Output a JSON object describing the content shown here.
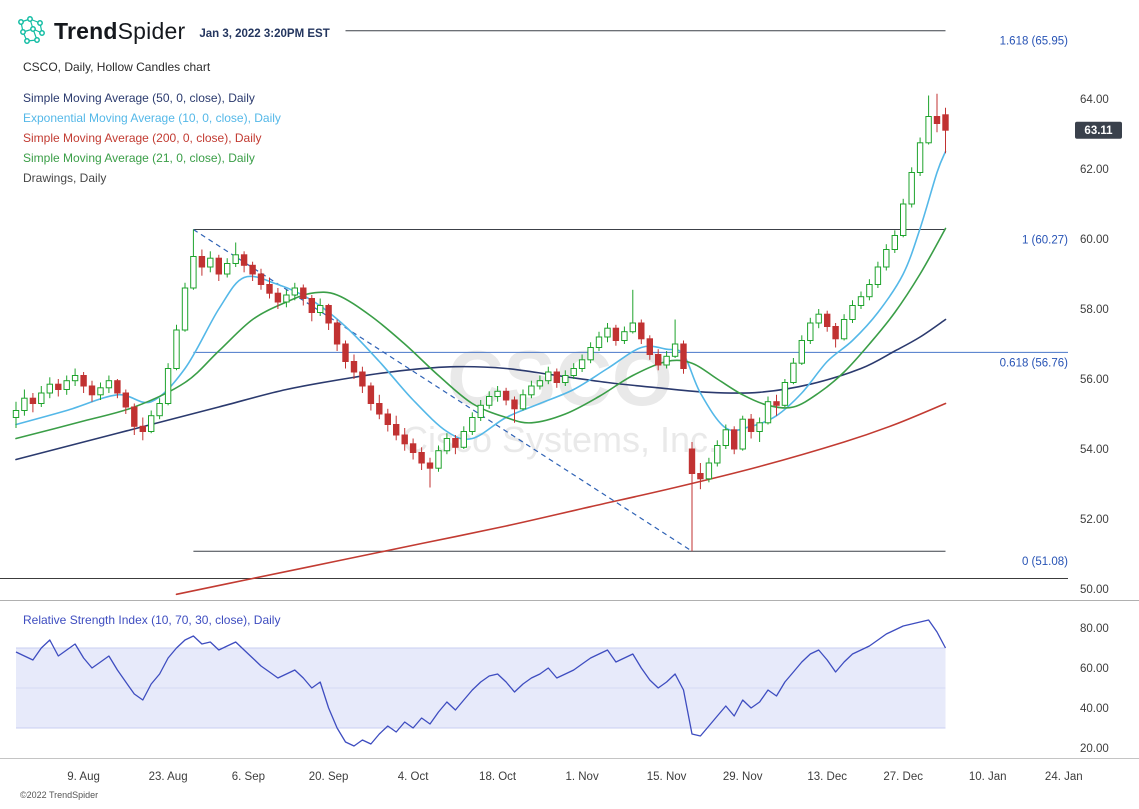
{
  "header": {
    "brand_bold": "Trend",
    "brand_regular": "Spider",
    "timestamp": "Jan 3, 2022 3:20PM EST"
  },
  "legend": {
    "chart_title": "CSCO, Daily, Hollow Candles chart",
    "items": [
      {
        "name": "sma-50",
        "label": "Simple Moving Average (50, 0, close), Daily",
        "color": "#2b3a6e"
      },
      {
        "name": "ema-10",
        "label": "Exponential Moving Average (10, 0, close), Daily",
        "color": "#54b8e8"
      },
      {
        "name": "sma-200",
        "label": "Simple Moving Average (200, 0, close), Daily",
        "color": "#c23b32"
      },
      {
        "name": "sma-21",
        "label": "Simple Moving Average (21, 0, close), Daily",
        "color": "#3a9e47"
      }
    ],
    "drawings_label": "Drawings, Daily",
    "drawings_color": "#474747",
    "rsi_label": "Relative Strength Index (10, 70, 30, close), Daily",
    "rsi_color": "#3e4dc0"
  },
  "watermark": {
    "line1": "CSCO",
    "line2": "Cisco Systems, Inc."
  },
  "price_badge": {
    "value": "63.11",
    "bg": "#3a414c"
  },
  "footer": {
    "copyright": "©2022 TrendSpider"
  },
  "chart_data": {
    "type": "candlestick",
    "symbol": "CSCO",
    "timeframe": "Daily",
    "title": "CSCO, Daily, Hollow Candles chart",
    "price_axis": {
      "ticks": [
        "64.00",
        "62.00",
        "60.00",
        "58.00",
        "56.00",
        "54.00",
        "52.00",
        "50.00"
      ],
      "tick_values": [
        64,
        62,
        60,
        58,
        56,
        54,
        52,
        50
      ],
      "min": 49.3,
      "max": 66.8
    },
    "x_labels": [
      {
        "label": "9. Aug",
        "i": 8
      },
      {
        "label": "23. Aug",
        "i": 18
      },
      {
        "label": "6. Sep",
        "i": 27.5
      },
      {
        "label": "20. Sep",
        "i": 37
      },
      {
        "label": "4. Oct",
        "i": 47
      },
      {
        "label": "18. Oct",
        "i": 57
      },
      {
        "label": "1. Nov",
        "i": 67
      },
      {
        "label": "15. Nov",
        "i": 77
      },
      {
        "label": "29. Nov",
        "i": 86
      },
      {
        "label": "13. Dec",
        "i": 96
      },
      {
        "label": "27. Dec",
        "i": 105
      },
      {
        "label": "10. Jan",
        "i": 115
      },
      {
        "label": "24. Jan",
        "i": 124
      }
    ],
    "candles": [
      [
        54.9,
        55.35,
        54.6,
        55.1
      ],
      [
        55.1,
        55.7,
        54.95,
        55.45
      ],
      [
        55.45,
        55.6,
        55.05,
        55.3
      ],
      [
        55.3,
        55.8,
        55.2,
        55.6
      ],
      [
        55.6,
        56.05,
        55.45,
        55.85
      ],
      [
        55.85,
        56.0,
        55.5,
        55.7
      ],
      [
        55.7,
        56.1,
        55.55,
        55.95
      ],
      [
        55.95,
        56.3,
        55.8,
        56.1
      ],
      [
        56.1,
        56.2,
        55.6,
        55.8
      ],
      [
        55.8,
        55.95,
        55.35,
        55.55
      ],
      [
        55.55,
        55.9,
        55.4,
        55.75
      ],
      [
        55.75,
        56.1,
        55.6,
        55.95
      ],
      [
        55.95,
        56.0,
        55.45,
        55.6
      ],
      [
        55.6,
        55.7,
        55.0,
        55.2
      ],
      [
        55.2,
        55.3,
        54.4,
        54.65
      ],
      [
        54.65,
        54.9,
        54.25,
        54.5
      ],
      [
        54.5,
        55.1,
        54.45,
        54.95
      ],
      [
        54.95,
        55.45,
        54.85,
        55.3
      ],
      [
        55.3,
        56.45,
        55.25,
        56.3
      ],
      [
        56.3,
        57.55,
        56.25,
        57.4
      ],
      [
        57.4,
        58.75,
        57.35,
        58.6
      ],
      [
        58.6,
        60.27,
        58.55,
        59.5
      ],
      [
        59.5,
        59.7,
        58.95,
        59.2
      ],
      [
        59.2,
        59.65,
        59.05,
        59.45
      ],
      [
        59.45,
        59.55,
        58.8,
        59.0
      ],
      [
        59.0,
        59.45,
        58.9,
        59.3
      ],
      [
        59.3,
        59.9,
        59.2,
        59.55
      ],
      [
        59.55,
        59.65,
        59.05,
        59.25
      ],
      [
        59.25,
        59.35,
        58.8,
        59.0
      ],
      [
        59.0,
        59.15,
        58.55,
        58.7
      ],
      [
        58.7,
        58.9,
        58.3,
        58.45
      ],
      [
        58.45,
        58.6,
        58.0,
        58.2
      ],
      [
        58.2,
        58.55,
        58.05,
        58.4
      ],
      [
        58.4,
        58.75,
        58.25,
        58.6
      ],
      [
        58.6,
        58.7,
        58.1,
        58.3
      ],
      [
        58.3,
        58.4,
        57.65,
        57.9
      ],
      [
        57.9,
        58.3,
        57.8,
        58.1
      ],
      [
        58.1,
        58.15,
        57.4,
        57.6
      ],
      [
        57.6,
        57.7,
        56.8,
        57.0
      ],
      [
        57.0,
        57.1,
        56.3,
        56.5
      ],
      [
        56.5,
        56.7,
        56.0,
        56.2
      ],
      [
        56.2,
        56.35,
        55.6,
        55.8
      ],
      [
        55.8,
        55.9,
        55.1,
        55.3
      ],
      [
        55.3,
        55.55,
        54.85,
        55.0
      ],
      [
        55.0,
        55.15,
        54.5,
        54.7
      ],
      [
        54.7,
        54.95,
        54.25,
        54.4
      ],
      [
        54.4,
        54.6,
        53.95,
        54.15
      ],
      [
        54.15,
        54.3,
        53.7,
        53.9
      ],
      [
        53.9,
        54.05,
        53.4,
        53.6
      ],
      [
        53.6,
        53.75,
        52.9,
        53.45
      ],
      [
        53.45,
        54.1,
        53.35,
        53.95
      ],
      [
        53.95,
        54.45,
        53.85,
        54.3
      ],
      [
        54.3,
        54.4,
        53.85,
        54.05
      ],
      [
        54.05,
        54.65,
        54.0,
        54.5
      ],
      [
        54.5,
        55.05,
        54.4,
        54.9
      ],
      [
        54.9,
        55.4,
        54.8,
        55.25
      ],
      [
        55.25,
        55.65,
        55.15,
        55.5
      ],
      [
        55.5,
        55.8,
        55.35,
        55.65
      ],
      [
        55.65,
        55.75,
        55.25,
        55.4
      ],
      [
        55.4,
        55.5,
        54.75,
        55.15
      ],
      [
        55.15,
        55.7,
        55.1,
        55.55
      ],
      [
        55.55,
        55.95,
        55.45,
        55.8
      ],
      [
        55.8,
        56.1,
        55.7,
        55.95
      ],
      [
        55.95,
        56.35,
        55.85,
        56.2
      ],
      [
        56.2,
        56.3,
        55.75,
        55.9
      ],
      [
        55.9,
        56.25,
        55.8,
        56.1
      ],
      [
        56.1,
        56.45,
        56.0,
        56.3
      ],
      [
        56.3,
        56.7,
        56.2,
        56.55
      ],
      [
        56.55,
        57.05,
        56.45,
        56.9
      ],
      [
        56.9,
        57.35,
        56.8,
        57.2
      ],
      [
        57.2,
        57.6,
        57.05,
        57.45
      ],
      [
        57.45,
        57.55,
        56.95,
        57.1
      ],
      [
        57.1,
        57.5,
        57.0,
        57.35
      ],
      [
        57.35,
        58.55,
        57.3,
        57.6
      ],
      [
        57.6,
        57.7,
        57.0,
        57.15
      ],
      [
        57.15,
        57.25,
        56.55,
        56.7
      ],
      [
        56.7,
        56.85,
        56.25,
        56.4
      ],
      [
        56.4,
        56.8,
        56.3,
        56.65
      ],
      [
        56.65,
        57.7,
        56.6,
        57.0
      ],
      [
        57.0,
        57.1,
        56.15,
        56.3
      ],
      [
        54.0,
        54.2,
        51.08,
        53.3
      ],
      [
        53.3,
        53.6,
        52.85,
        53.15
      ],
      [
        53.15,
        53.75,
        53.05,
        53.6
      ],
      [
        53.6,
        54.25,
        53.5,
        54.1
      ],
      [
        54.1,
        54.7,
        54.0,
        54.55
      ],
      [
        54.55,
        54.65,
        53.85,
        54.0
      ],
      [
        54.0,
        54.95,
        53.95,
        54.85
      ],
      [
        54.85,
        55.0,
        54.3,
        54.5
      ],
      [
        54.5,
        54.9,
        54.2,
        54.75
      ],
      [
        54.75,
        55.5,
        54.7,
        55.35
      ],
      [
        55.35,
        55.55,
        54.95,
        55.25
      ],
      [
        55.25,
        56.0,
        55.2,
        55.9
      ],
      [
        55.9,
        56.6,
        55.85,
        56.45
      ],
      [
        56.45,
        57.25,
        56.4,
        57.1
      ],
      [
        57.1,
        57.75,
        57.0,
        57.6
      ],
      [
        57.6,
        58.0,
        57.45,
        57.85
      ],
      [
        57.85,
        57.95,
        57.35,
        57.5
      ],
      [
        57.5,
        57.6,
        56.9,
        57.15
      ],
      [
        57.15,
        57.85,
        57.1,
        57.7
      ],
      [
        57.7,
        58.25,
        57.6,
        58.1
      ],
      [
        58.1,
        58.5,
        58.0,
        58.35
      ],
      [
        58.35,
        58.85,
        58.25,
        58.7
      ],
      [
        58.7,
        59.35,
        58.6,
        59.2
      ],
      [
        59.2,
        59.85,
        59.1,
        59.7
      ],
      [
        59.7,
        60.25,
        59.6,
        60.1
      ],
      [
        60.1,
        61.15,
        60.05,
        61.0
      ],
      [
        61.0,
        62.05,
        60.9,
        61.9
      ],
      [
        61.9,
        62.9,
        61.8,
        62.75
      ],
      [
        62.75,
        64.1,
        62.7,
        63.5
      ],
      [
        63.5,
        64.15,
        63.05,
        63.3
      ],
      [
        63.55,
        63.75,
        62.45,
        63.11
      ]
    ],
    "rsi": {
      "params": "10, 70, 30, close",
      "color": "#3e4dc0",
      "band": [
        30,
        70
      ],
      "axis_ticks": [
        "80.00",
        "60.00",
        "40.00",
        "20.00"
      ],
      "tick_values": [
        80,
        60,
        40,
        20
      ],
      "values": [
        68,
        66,
        64,
        70,
        74,
        66,
        69,
        72,
        65,
        60,
        63,
        66,
        59,
        53,
        47,
        44,
        52,
        57,
        65,
        70,
        74,
        76,
        72,
        73,
        69,
        71,
        73,
        69,
        65,
        61,
        58,
        55,
        57,
        59,
        55,
        50,
        53,
        40,
        30,
        23,
        21,
        24,
        22,
        27,
        31,
        28,
        33,
        30,
        35,
        32,
        38,
        43,
        39,
        44,
        49,
        53,
        56,
        57,
        53,
        48,
        52,
        55,
        57,
        60,
        55,
        57,
        59,
        62,
        65,
        67,
        69,
        63,
        65,
        67,
        60,
        54,
        50,
        53,
        57,
        49,
        27,
        26,
        31,
        36,
        41,
        36,
        44,
        40,
        43,
        49,
        46,
        53,
        58,
        63,
        67,
        69,
        64,
        58,
        63,
        67,
        69,
        71,
        74,
        77,
        79,
        81,
        82,
        83,
        84,
        78,
        70
      ]
    },
    "moving_averages": [
      {
        "name": "SMA 50",
        "color": "#2b3a6e",
        "points": [
          [
            0,
            53.7
          ],
          [
            8,
            54.2
          ],
          [
            16,
            54.7
          ],
          [
            24,
            55.2
          ],
          [
            32,
            55.7
          ],
          [
            40,
            56.05
          ],
          [
            46,
            56.25
          ],
          [
            52,
            56.35
          ],
          [
            58,
            56.3
          ],
          [
            64,
            56.1
          ],
          [
            70,
            55.9
          ],
          [
            76,
            55.75
          ],
          [
            82,
            55.62
          ],
          [
            88,
            55.62
          ],
          [
            94,
            55.85
          ],
          [
            100,
            56.3
          ],
          [
            104,
            56.8
          ],
          [
            107,
            57.2
          ],
          [
            110,
            57.7
          ]
        ]
      },
      {
        "name": "EMA 10",
        "color": "#54b8e8",
        "points": [
          [
            0,
            54.7
          ],
          [
            6,
            55.1
          ],
          [
            12,
            55.55
          ],
          [
            16,
            55.35
          ],
          [
            20,
            56.3
          ],
          [
            24,
            58.0
          ],
          [
            27,
            58.9
          ],
          [
            31,
            58.7
          ],
          [
            35,
            58.25
          ],
          [
            39,
            57.5
          ],
          [
            43,
            56.5
          ],
          [
            47,
            55.4
          ],
          [
            51,
            54.5
          ],
          [
            54,
            54.3
          ],
          [
            58,
            54.9
          ],
          [
            62,
            55.3
          ],
          [
            66,
            55.7
          ],
          [
            70,
            56.3
          ],
          [
            74,
            56.9
          ],
          [
            77,
            56.85
          ],
          [
            79,
            56.7
          ],
          [
            81,
            55.6
          ],
          [
            84,
            54.6
          ],
          [
            87,
            54.65
          ],
          [
            90,
            54.95
          ],
          [
            93,
            55.6
          ],
          [
            96,
            56.5
          ],
          [
            99,
            57.1
          ],
          [
            102,
            57.9
          ],
          [
            105,
            59.0
          ],
          [
            107,
            60.3
          ],
          [
            109,
            61.9
          ],
          [
            110,
            62.5
          ]
        ]
      },
      {
        "name": "SMA 200",
        "color": "#c23b32",
        "points": [
          [
            19,
            49.85
          ],
          [
            28,
            50.3
          ],
          [
            38,
            50.8
          ],
          [
            48,
            51.3
          ],
          [
            58,
            51.8
          ],
          [
            68,
            52.35
          ],
          [
            78,
            52.9
          ],
          [
            88,
            53.5
          ],
          [
            98,
            54.2
          ],
          [
            104,
            54.7
          ],
          [
            110,
            55.3
          ]
        ]
      },
      {
        "name": "SMA 21",
        "color": "#3a9e47",
        "points": [
          [
            0,
            54.3
          ],
          [
            8,
            54.8
          ],
          [
            14,
            55.2
          ],
          [
            20,
            55.9
          ],
          [
            24,
            56.8
          ],
          [
            28,
            57.7
          ],
          [
            32,
            58.2
          ],
          [
            35,
            58.45
          ],
          [
            38,
            58.4
          ],
          [
            42,
            57.8
          ],
          [
            46,
            57.0
          ],
          [
            50,
            56.1
          ],
          [
            54,
            55.3
          ],
          [
            58,
            54.9
          ],
          [
            61,
            54.75
          ],
          [
            65,
            55.0
          ],
          [
            69,
            55.5
          ],
          [
            73,
            56.1
          ],
          [
            77,
            56.5
          ],
          [
            80,
            56.45
          ],
          [
            83,
            56.0
          ],
          [
            86,
            55.55
          ],
          [
            89,
            55.25
          ],
          [
            92,
            55.2
          ],
          [
            95,
            55.6
          ],
          [
            98,
            56.2
          ],
          [
            101,
            57.0
          ],
          [
            104,
            57.9
          ],
          [
            107,
            59.0
          ],
          [
            110,
            60.3
          ]
        ]
      }
    ],
    "fib_levels": [
      {
        "label": "1.618 (65.95)",
        "price": 65.95,
        "from_i": 39,
        "to_i": 110,
        "line_color": "#3c4048"
      },
      {
        "label": "1 (60.27)",
        "price": 60.27,
        "from_i": 21,
        "to_i": 110,
        "line_color": "#3c4048"
      },
      {
        "label": "0.618 (56.76)",
        "price": 56.76,
        "from_i": 21,
        "to_i": 124.5,
        "line_color": "#4a77c9"
      },
      {
        "label": "0 (51.08)",
        "price": 51.08,
        "from_i": 21,
        "to_i": 110,
        "line_color": "#3c4048"
      }
    ],
    "fib_label_color": "#2753b5",
    "trendline": {
      "from": [
        21,
        60.27
      ],
      "to": [
        80,
        51.08
      ],
      "color": "#2f62b5",
      "dashed": true
    },
    "horizontal_line": {
      "price": 50.3,
      "color": "#3c3c3c"
    },
    "last_price": 63.11,
    "up_color": "#1ea32c",
    "down_color": "#c13232"
  }
}
